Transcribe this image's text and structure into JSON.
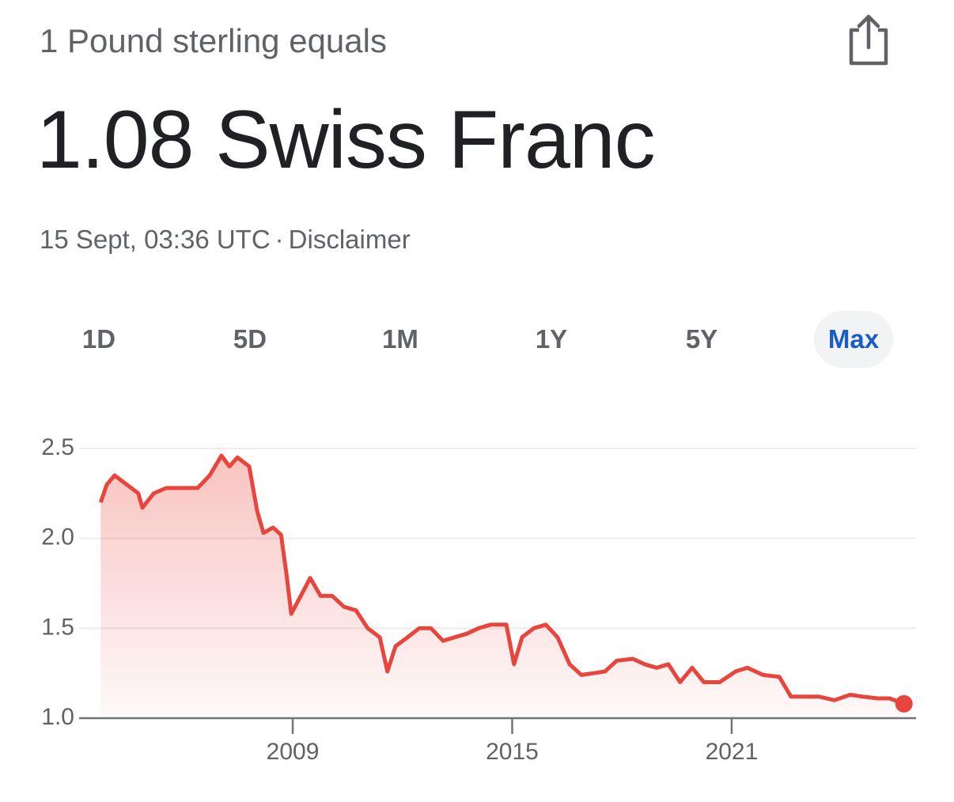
{
  "header": {
    "subtitle": "1 Pound sterling equals",
    "headline": "1.08 Swiss Franc",
    "timestamp": "15 Sept, 03:36 UTC",
    "separator": "·",
    "disclaimer": "Disclaimer"
  },
  "tabs": {
    "items": [
      "1D",
      "5D",
      "1M",
      "1Y",
      "5Y",
      "Max"
    ],
    "active": "Max"
  },
  "chart_data": {
    "type": "line",
    "color": "#e8453c",
    "grid": true,
    "x": [
      2003.75,
      2003.92,
      2004.13,
      2004.46,
      2004.78,
      2004.89,
      2005.2,
      2005.54,
      2005.97,
      2006.4,
      2006.73,
      2007.05,
      2007.27,
      2007.49,
      2007.81,
      2008.03,
      2008.2,
      2008.46,
      2008.68,
      2008.83,
      2008.96,
      2009.22,
      2009.48,
      2009.76,
      2010.08,
      2010.4,
      2010.73,
      2011.05,
      2011.38,
      2011.59,
      2011.81,
      2012.14,
      2012.46,
      2012.78,
      2013.11,
      2013.43,
      2013.76,
      2014.08,
      2014.41,
      2014.84,
      2015.05,
      2015.27,
      2015.59,
      2015.92,
      2016.24,
      2016.57,
      2016.89,
      2017.22,
      2017.54,
      2017.86,
      2018.3,
      2018.62,
      2018.95,
      2019.27,
      2019.59,
      2019.92,
      2020.24,
      2020.67,
      2021.11,
      2021.43,
      2021.86,
      2022.3,
      2022.62,
      2022.95,
      2023.38,
      2023.81,
      2024.24,
      2024.57,
      2025.0,
      2025.32,
      2025.71
    ],
    "series": [
      {
        "name": "GBP/CHF",
        "color": "#e8453c",
        "values": [
          2.2,
          2.3,
          2.35,
          2.3,
          2.25,
          2.17,
          2.25,
          2.28,
          2.28,
          2.28,
          2.35,
          2.46,
          2.4,
          2.45,
          2.4,
          2.15,
          2.03,
          2.06,
          2.02,
          1.8,
          1.58,
          1.68,
          1.78,
          1.68,
          1.68,
          1.62,
          1.6,
          1.5,
          1.45,
          1.26,
          1.4,
          1.45,
          1.5,
          1.5,
          1.43,
          1.45,
          1.47,
          1.5,
          1.52,
          1.52,
          1.3,
          1.45,
          1.5,
          1.52,
          1.45,
          1.3,
          1.24,
          1.25,
          1.26,
          1.32,
          1.33,
          1.3,
          1.28,
          1.3,
          1.2,
          1.28,
          1.2,
          1.2,
          1.26,
          1.28,
          1.24,
          1.23,
          1.12,
          1.12,
          1.12,
          1.1,
          1.13,
          1.12,
          1.11,
          1.11,
          1.08
        ]
      }
    ],
    "xlim": [
      2003.16,
      2026.04
    ],
    "xticks": [
      2009,
      2015,
      2021
    ],
    "ylim": [
      1.0,
      2.5
    ],
    "yticks": [
      {
        "value": 1.0,
        "label": "1.0"
      },
      1.5,
      {
        "value": 2.0,
        "label": "2.0"
      },
      2.5
    ]
  }
}
